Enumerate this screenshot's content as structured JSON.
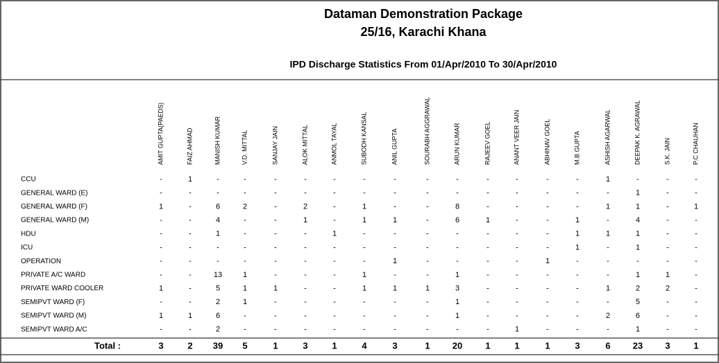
{
  "header": {
    "title": "Dataman Demonstration Package",
    "address": "25/16, Karachi Khana",
    "subtitle": "IPD Discharge Statistics From 01/Apr/2010 To 30/Apr/2010"
  },
  "table": {
    "columns": [
      "AMIT GUPTA(PAEDS)",
      "FAIZ AHMAD",
      "MANISH KUMAR",
      "V.D. MITTAL",
      "SANJAY JAIN",
      "ALOK MITTAL",
      "ANMOL TAYAL",
      "SUBODH KANSAL",
      "ANIL GUPTA",
      "SOURABH AGGRAWAL",
      "ARUN KUMAR",
      "RAJEEV GOEL",
      "ANANT VEER JAIN",
      "ABHINAV GOEL",
      "M.B GUPTA",
      "ASHISH AGARWAL",
      "DEEPAK K. AGRAWAL",
      "S.K. JAIN",
      "P.C CHAUHAN"
    ],
    "rows": [
      {
        "label": "CCU",
        "cells": [
          "-",
          "1",
          "-",
          "-",
          "-",
          "-",
          "-",
          "-",
          "-",
          "-",
          "-",
          "-",
          "-",
          "-",
          "-",
          "1",
          "-",
          "-",
          "-"
        ]
      },
      {
        "label": "GENERAL WARD (E)",
        "cells": [
          "-",
          "-",
          "-",
          "-",
          "-",
          "-",
          "-",
          "-",
          "-",
          "-",
          "-",
          "-",
          "-",
          "-",
          "-",
          "-",
          "1",
          "-",
          "-"
        ]
      },
      {
        "label": "GENERAL WARD (F)",
        "cells": [
          "1",
          "-",
          "6",
          "2",
          "-",
          "2",
          "-",
          "1",
          "-",
          "-",
          "8",
          "-",
          "-",
          "-",
          "-",
          "1",
          "1",
          "-",
          "1"
        ]
      },
      {
        "label": "GENERAL WARD (M)",
        "cells": [
          "-",
          "-",
          "4",
          "-",
          "-",
          "1",
          "-",
          "1",
          "1",
          "-",
          "6",
          "1",
          "-",
          "-",
          "1",
          "-",
          "4",
          "-",
          "-"
        ]
      },
      {
        "label": "HDU",
        "cells": [
          "-",
          "-",
          "1",
          "-",
          "-",
          "-",
          "1",
          "-",
          "-",
          "-",
          "-",
          "-",
          "-",
          "-",
          "1",
          "1",
          "1",
          "-",
          "-"
        ]
      },
      {
        "label": "ICU",
        "cells": [
          "-",
          "-",
          "-",
          "-",
          "-",
          "-",
          "-",
          "-",
          "-",
          "-",
          "-",
          "-",
          "-",
          "-",
          "1",
          "-",
          "1",
          "-",
          "-"
        ]
      },
      {
        "label": "OPERATION",
        "cells": [
          "-",
          "-",
          "-",
          "-",
          "-",
          "-",
          "-",
          "-",
          "1",
          "-",
          "-",
          "-",
          "-",
          "1",
          "-",
          "-",
          "-",
          "-",
          "-"
        ]
      },
      {
        "label": "PRIVATE A/C WARD",
        "cells": [
          "-",
          "-",
          "13",
          "1",
          "-",
          "-",
          "-",
          "1",
          "-",
          "-",
          "1",
          "-",
          "-",
          "-",
          "-",
          "-",
          "1",
          "1",
          "-"
        ]
      },
      {
        "label": "PRIVATE WARD COOLER",
        "cells": [
          "1",
          "-",
          "5",
          "1",
          "1",
          "-",
          "-",
          "1",
          "1",
          "1",
          "3",
          "-",
          "-",
          "-",
          "-",
          "1",
          "2",
          "2",
          "-"
        ]
      },
      {
        "label": "SEMIPVT WARD (F)",
        "cells": [
          "-",
          "-",
          "2",
          "1",
          "-",
          "-",
          "-",
          "-",
          "-",
          "-",
          "1",
          "-",
          "-",
          "-",
          "-",
          "-",
          "5",
          "-",
          "-"
        ]
      },
      {
        "label": "SEMIPVT WARD (M)",
        "cells": [
          "1",
          "1",
          "6",
          "-",
          "-",
          "-",
          "-",
          "-",
          "-",
          "-",
          "1",
          "-",
          "-",
          "-",
          "-",
          "2",
          "6",
          "-",
          "-"
        ]
      },
      {
        "label": "SEMIPVT WARD A/C",
        "cells": [
          "-",
          "-",
          "2",
          "-",
          "-",
          "-",
          "-",
          "-",
          "-",
          "-",
          "-",
          "-",
          "1",
          "-",
          "-",
          "-",
          "1",
          "-",
          "-"
        ]
      }
    ],
    "total_label": "Total :",
    "totals": [
      3,
      2,
      39,
      5,
      1,
      3,
      1,
      4,
      3,
      1,
      20,
      1,
      1,
      1,
      3,
      6,
      23,
      3,
      1
    ]
  }
}
